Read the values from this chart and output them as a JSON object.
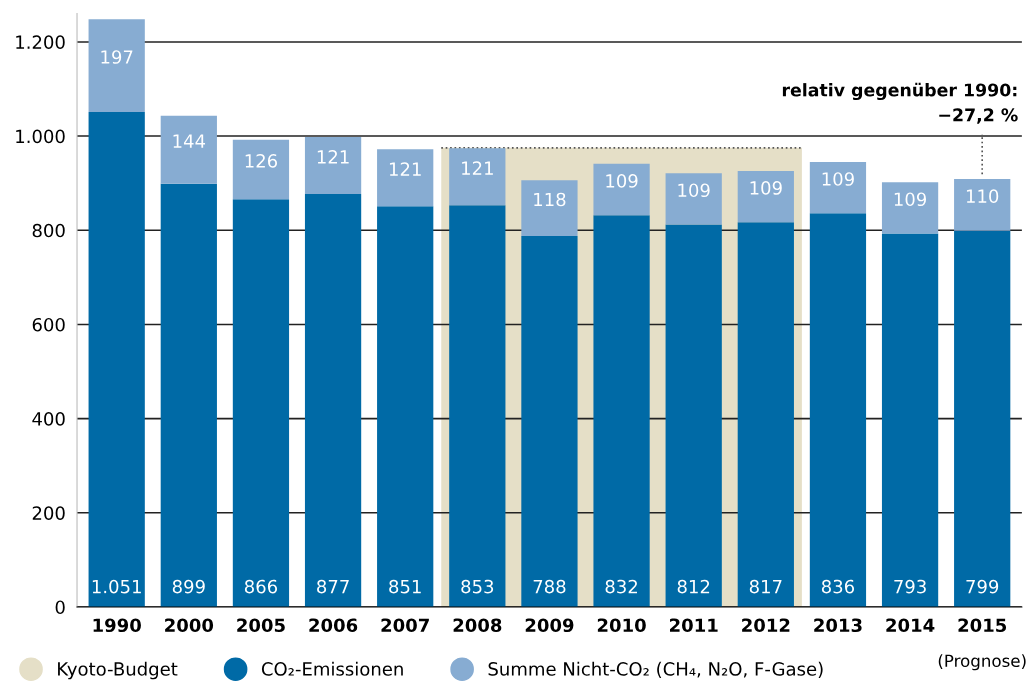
{
  "chart_data": {
    "type": "bar",
    "stacked": true,
    "categories": [
      "1990",
      "2000",
      "2005",
      "2006",
      "2007",
      "2008",
      "2009",
      "2010",
      "2011",
      "2012",
      "2013",
      "2014",
      "2015"
    ],
    "series": [
      {
        "name": "CO₂-Emissionen",
        "color": "#006aa6",
        "values": [
          1051,
          899,
          866,
          877,
          851,
          853,
          788,
          832,
          812,
          817,
          836,
          793,
          799
        ],
        "value_labels": [
          "1.051",
          "899",
          "866",
          "877",
          "851",
          "853",
          "788",
          "832",
          "812",
          "817",
          "836",
          "793",
          "799"
        ]
      },
      {
        "name": "Summe Nicht-CO₂ (CH₄, N₂O, F-Gase)",
        "color": "#87acd2",
        "values": [
          197,
          144,
          126,
          121,
          121,
          121,
          118,
          109,
          109,
          109,
          109,
          109,
          110
        ],
        "value_labels": [
          "197",
          "144",
          "126",
          "121",
          "121",
          "121",
          "118",
          "109",
          "109",
          "109",
          "109",
          "109",
          "110"
        ]
      }
    ],
    "ylim": [
      0,
      1260
    ],
    "yticks": [
      0,
      200,
      400,
      600,
      800,
      {
        "value": 1000,
        "label": "1.000"
      },
      {
        "value": 1200,
        "label": "1.200"
      }
    ],
    "bands": [
      {
        "axis": "x",
        "from": "2008",
        "to": "2012",
        "label": "Kyoto-Budget",
        "color": "#e5dfc7"
      }
    ],
    "ref_lines": [
      {
        "axis": "y",
        "value": 975,
        "line_style": "dotted",
        "color": "#555555"
      }
    ],
    "grid": "y",
    "legend": "bottom left",
    "annotations": [
      {
        "text": "relativ gegenüber 1990:\n−27,2 %",
        "x": "2015",
        "y": 909
      },
      "(Prognose)"
    ]
  }
}
